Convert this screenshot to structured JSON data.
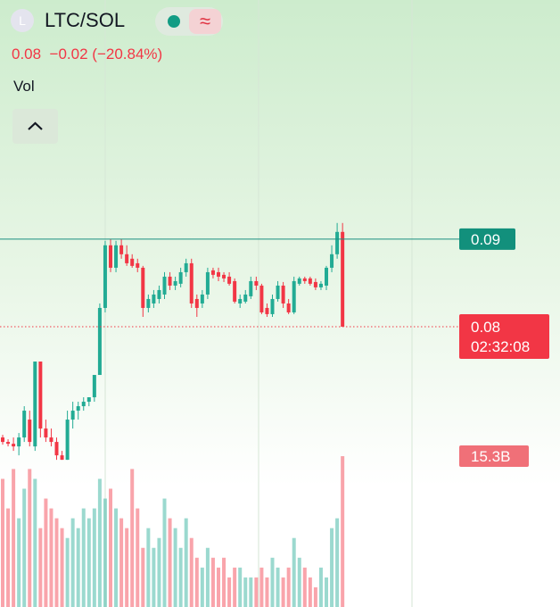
{
  "header": {
    "symbol_icon": "L",
    "symbol": "LTC/SOL",
    "change": "−0.02",
    "change_pct": "(−20.84%)",
    "volume_legend": "Vol"
  },
  "chart_data": {
    "type": "candlestick",
    "ylim": [
      0.0643,
      0.1173
    ],
    "open": [
      0.06735,
      0.06684,
      0.06663,
      0.06633,
      0.06735,
      0.06939,
      0.06633,
      0.07602,
      0.06837,
      0.06735,
      0.06684,
      0.06531,
      0.0648,
      0.06939,
      0.07041,
      0.07092,
      0.07143,
      0.07194,
      0.07449,
      0.08214,
      0.08929,
      0.08673,
      0.08929,
      0.08827,
      0.08776,
      0.08724,
      0.08673,
      0.08214,
      0.08265,
      0.08316,
      0.08367,
      0.08571,
      0.08469,
      0.0849,
      0.08622,
      0.08724,
      0.08316,
      0.08265,
      0.08367,
      0.08643,
      0.08622,
      0.08592,
      0.08571,
      0.0852,
      0.08265,
      0.08286,
      0.08347,
      0.0852,
      0.08469,
      0.08214,
      0.08143,
      0.08316,
      0.08469,
      0.08265,
      0.08163,
      0.0849,
      0.08551,
      0.08551,
      0.0851,
      0.08449,
      0.08469,
      0.08673,
      0.08827,
      0.09082
    ],
    "high": [
      0.06765,
      0.06714,
      0.06735,
      0.06786,
      0.07092,
      0.07041,
      0.07602,
      0.07602,
      0.06939,
      0.06837,
      0.06735,
      0.06582,
      0.07041,
      0.07143,
      0.07143,
      0.07194,
      0.07194,
      0.07449,
      0.08265,
      0.0898,
      0.09,
      0.0898,
      0.09,
      0.08929,
      0.08827,
      0.08776,
      0.08694,
      0.08367,
      0.08418,
      0.08469,
      0.08622,
      0.08622,
      0.08571,
      0.08673,
      0.08776,
      0.08776,
      0.08367,
      0.08418,
      0.08673,
      0.08673,
      0.08673,
      0.08622,
      0.08622,
      0.08551,
      0.08367,
      0.08418,
      0.08571,
      0.08571,
      0.0849,
      0.08265,
      0.08367,
      0.0852,
      0.0851,
      0.08316,
      0.08571,
      0.08571,
      0.08571,
      0.08571,
      0.08551,
      0.0852,
      0.08694,
      0.08929,
      0.09184,
      0.09184
    ],
    "low": [
      0.06653,
      0.06633,
      0.06582,
      0.06531,
      0.06684,
      0.06633,
      0.06582,
      0.06735,
      0.06684,
      0.06633,
      0.0648,
      0.0648,
      0.0648,
      0.06837,
      0.06939,
      0.07041,
      0.07092,
      0.07143,
      0.07449,
      0.08163,
      0.08622,
      0.08622,
      0.08776,
      0.08694,
      0.08673,
      0.08622,
      0.08112,
      0.08163,
      0.08214,
      0.08265,
      0.08316,
      0.08418,
      0.08418,
      0.08449,
      0.08571,
      0.08214,
      0.08112,
      0.08214,
      0.08316,
      0.08551,
      0.0852,
      0.0851,
      0.08469,
      0.08265,
      0.08214,
      0.08265,
      0.08316,
      0.08418,
      0.08143,
      0.08112,
      0.08112,
      0.08286,
      0.08214,
      0.08143,
      0.08143,
      0.08469,
      0.0849,
      0.08469,
      0.08418,
      0.08418,
      0.08418,
      0.08622,
      0.08776,
      0.08
    ],
    "close": [
      0.06684,
      0.06663,
      0.06633,
      0.06735,
      0.07041,
      0.06684,
      0.07602,
      0.06837,
      0.06735,
      0.06684,
      0.06531,
      0.0648,
      0.06939,
      0.07041,
      0.07092,
      0.07143,
      0.07194,
      0.07449,
      0.08214,
      0.08929,
      0.08673,
      0.08929,
      0.08827,
      0.08724,
      0.08694,
      0.08673,
      0.08214,
      0.08316,
      0.08367,
      0.08418,
      0.08571,
      0.08469,
      0.0852,
      0.08622,
      0.08724,
      0.08265,
      0.08214,
      0.08367,
      0.08622,
      0.08592,
      0.08571,
      0.08551,
      0.0849,
      0.08286,
      0.08316,
      0.08367,
      0.0852,
      0.08469,
      0.08163,
      0.08143,
      0.08316,
      0.08469,
      0.08265,
      0.08163,
      0.0852,
      0.08551,
      0.0852,
      0.0849,
      0.08449,
      0.0849,
      0.08673,
      0.08827,
      0.09082,
      0.08
    ],
    "volume": [
      13,
      10,
      14,
      9,
      12,
      14,
      13,
      8,
      11,
      10,
      9,
      8,
      7,
      9,
      8,
      10,
      9,
      10,
      13,
      11,
      12,
      10,
      9,
      8,
      14,
      10,
      6,
      8,
      6,
      7,
      11,
      9,
      8,
      6,
      9,
      7,
      5,
      4,
      6,
      5,
      4,
      5,
      3,
      4,
      4,
      3,
      3,
      3,
      4,
      3,
      5,
      4,
      3,
      4,
      7,
      5,
      4,
      3,
      2,
      4,
      3,
      8,
      9,
      15.3
    ],
    "volume_ylim": [
      0,
      16.3
    ],
    "up_color": "#22ab94",
    "down_color": "#f23645",
    "price_line": 0.09,
    "last_price": 0.08,
    "countdown": "02:32:08",
    "volume_label": {
      "value": 15.3,
      "label": "15.3B"
    }
  }
}
